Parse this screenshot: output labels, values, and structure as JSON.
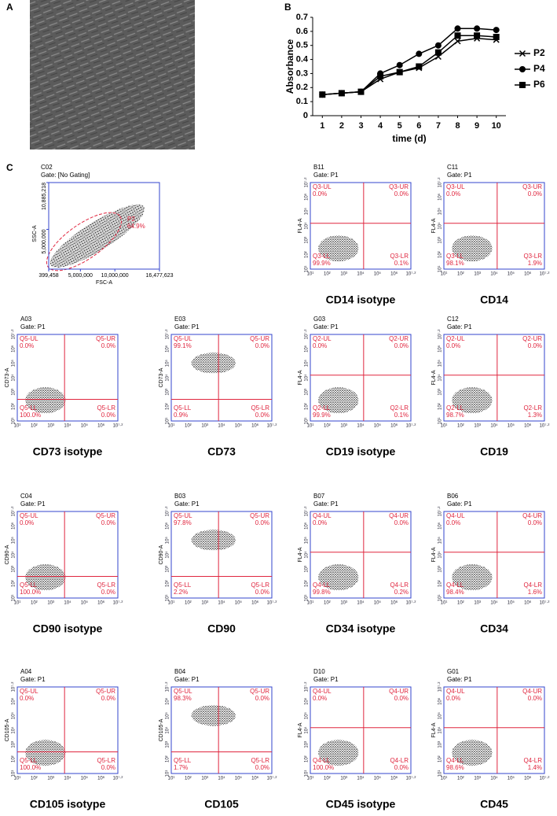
{
  "panel_labels": [
    "A",
    "B",
    "C"
  ],
  "chart_data": {
    "type": "line",
    "xlabel": "time (d)",
    "ylabel": "Absorbance",
    "x": [
      1,
      2,
      3,
      4,
      5,
      6,
      7,
      8,
      9,
      10
    ],
    "xlim": [
      0.5,
      10.5
    ],
    "xticks": [
      1,
      2,
      3,
      4,
      5,
      6,
      7,
      8,
      9,
      10
    ],
    "ylim": [
      0,
      0.7
    ],
    "yticks": [
      0,
      0.1,
      0.2,
      0.3,
      0.4,
      0.5,
      0.6,
      0.7
    ],
    "legend": "right",
    "series": [
      {
        "name": "P2",
        "color": "#000000",
        "marker": "x",
        "values": [
          0.15,
          0.16,
          0.17,
          0.26,
          0.31,
          0.34,
          0.42,
          0.53,
          0.55,
          0.54
        ]
      },
      {
        "name": "P4",
        "color": "#000000",
        "marker": "circle",
        "values": [
          0.15,
          0.16,
          0.17,
          0.3,
          0.36,
          0.44,
          0.5,
          0.62,
          0.62,
          0.61
        ]
      },
      {
        "name": "P6",
        "color": "#000000",
        "marker": "square",
        "values": [
          0.15,
          0.16,
          0.17,
          0.28,
          0.31,
          0.35,
          0.45,
          0.57,
          0.57,
          0.56
        ]
      }
    ]
  },
  "scatter_plot": {
    "id": "C02",
    "gate": "Gate: [No Gating]",
    "xlabel": "FSC-A",
    "ylabel": "SSC-A",
    "region": "P2",
    "region_value": "64.9%",
    "xlim": [
      399458,
      16477623
    ],
    "xticks": [
      {
        "value": 399458,
        "label": "399,458"
      },
      {
        "value": 5000000,
        "label": "5,000,000"
      },
      {
        "value": 10000000,
        "label": "10,000,000"
      },
      {
        "value": 16477623,
        "label": "16,477,623"
      }
    ],
    "ylim": [
      0,
      10885218
    ],
    "yticks": [
      {
        "value": 5000000,
        "label": "5,000,000"
      },
      {
        "value": 10885218,
        "label": "10,885,218"
      }
    ]
  },
  "log_tick_labels": [
    "10¹",
    "10²",
    "10³",
    "10⁴",
    "10⁵",
    "10⁶",
    "10⁷·²"
  ],
  "flow_plots": [
    {
      "id": "B11",
      "gate": "Gate: P1",
      "ylabel": "FL4-A",
      "caption": "CD14 isotype",
      "quadrants": [
        [
          "Q3-UL",
          "0.0%"
        ],
        [
          "Q3-UR",
          "0.0%"
        ],
        [
          "Q3-LL",
          "99.9%"
        ],
        [
          "Q3-LR",
          "0.1%"
        ]
      ]
    },
    {
      "id": "C11",
      "gate": "Gate: P1",
      "ylabel": "FL4-A",
      "caption": "CD14",
      "quadrants": [
        [
          "Q3-UL",
          "0.0%"
        ],
        [
          "Q3-UR",
          "0.0%"
        ],
        [
          "Q3-LL",
          "98.1%"
        ],
        [
          "Q3-LR",
          "1.9%"
        ]
      ]
    },
    {
      "id": "A03",
      "gate": "Gate: P1",
      "ylabel": "CD73-A",
      "caption": "CD73 isotype",
      "quadrants": [
        [
          "Q5-UL",
          "0.0%"
        ],
        [
          "Q5-UR",
          "0.0%"
        ],
        [
          "Q5-LL",
          "100.0%"
        ],
        [
          "Q5-LR",
          "0.0%"
        ]
      ]
    },
    {
      "id": "E03",
      "gate": "Gate: P1",
      "ylabel": "CD73-A",
      "caption": "CD73",
      "quadrants": [
        [
          "Q5-UL",
          "99.1%"
        ],
        [
          "Q5-UR",
          "0.0%"
        ],
        [
          "Q5-LL",
          "0.9%"
        ],
        [
          "Q5-LR",
          "0.0%"
        ]
      ]
    },
    {
      "id": "G03",
      "gate": "Gate: P1",
      "ylabel": "FL4-A",
      "caption": "CD19 isotype",
      "quadrants": [
        [
          "Q2-UL",
          "0.0%"
        ],
        [
          "Q2-UR",
          "0.0%"
        ],
        [
          "Q2-LL",
          "99.9%"
        ],
        [
          "Q2-LR",
          "0.1%"
        ]
      ]
    },
    {
      "id": "C12",
      "gate": "Gate: P1",
      "ylabel": "FL4-A",
      "caption": "CD19",
      "quadrants": [
        [
          "Q2-UL",
          "0.0%"
        ],
        [
          "Q2-UR",
          "0.0%"
        ],
        [
          "Q2-LL",
          "98.7%"
        ],
        [
          "Q2-LR",
          "1.3%"
        ]
      ]
    },
    {
      "id": "C04",
      "gate": "Gate: P1",
      "ylabel": "CD90-A",
      "caption": "CD90 isotype",
      "quadrants": [
        [
          "Q5-UL",
          "0.0%"
        ],
        [
          "Q5-UR",
          "0.0%"
        ],
        [
          "Q5-LL",
          "100.0%"
        ],
        [
          "Q5-LR",
          "0.0%"
        ]
      ]
    },
    {
      "id": "B03",
      "gate": "Gate: P1",
      "ylabel": "CD90-A",
      "caption": "CD90",
      "quadrants": [
        [
          "Q5-UL",
          "97.8%"
        ],
        [
          "Q5-UR",
          "0.0%"
        ],
        [
          "Q5-LL",
          "2.2%"
        ],
        [
          "Q5-LR",
          "0.0%"
        ]
      ]
    },
    {
      "id": "B07",
      "gate": "Gate: P1",
      "ylabel": "FL4-A",
      "caption": "CD34 isotype",
      "quadrants": [
        [
          "Q4-UL",
          "0.0%"
        ],
        [
          "Q4-UR",
          "0.0%"
        ],
        [
          "Q4-LL",
          "99.8%"
        ],
        [
          "Q4-LR",
          "0.2%"
        ]
      ]
    },
    {
      "id": "B06",
      "gate": "Gate: P1",
      "ylabel": "FL4-A",
      "caption": "CD34",
      "quadrants": [
        [
          "Q4-UL",
          "0.0%"
        ],
        [
          "Q4-UR",
          "0.0%"
        ],
        [
          "Q4-LL",
          "98.4%"
        ],
        [
          "Q4-LR",
          "1.6%"
        ]
      ]
    },
    {
      "id": "A04",
      "gate": "Gate: P1",
      "ylabel": "CD105-A",
      "caption": "CD105 isotype",
      "quadrants": [
        [
          "Q5-UL",
          "0.0%"
        ],
        [
          "Q5-UR",
          "0.0%"
        ],
        [
          "Q5-LL",
          "100.0%"
        ],
        [
          "Q5-LR",
          "0.0%"
        ]
      ]
    },
    {
      "id": "B04",
      "gate": "Gate: P1",
      "ylabel": "CD105-A",
      "caption": "CD105",
      "quadrants": [
        [
          "Q5-UL",
          "98.3%"
        ],
        [
          "Q5-UR",
          "0.0%"
        ],
        [
          "Q5-LL",
          "1.7%"
        ],
        [
          "Q5-LR",
          "0.0%"
        ]
      ]
    },
    {
      "id": "D10",
      "gate": "Gate: P1",
      "ylabel": "FL4-A",
      "caption": "CD45 isotype",
      "quadrants": [
        [
          "Q4-UL",
          "0.0%"
        ],
        [
          "Q4-UR",
          "0.0%"
        ],
        [
          "Q4-LL",
          "100.0%"
        ],
        [
          "Q4-LR",
          "0.0%"
        ]
      ]
    },
    {
      "id": "G01",
      "gate": "Gate: P1",
      "ylabel": "FL4-A",
      "caption": "CD45",
      "quadrants": [
        [
          "Q4-UL",
          "0.0%"
        ],
        [
          "Q4-UR",
          "0.0%"
        ],
        [
          "Q4-LL",
          "98.6%"
        ],
        [
          "Q4-LR",
          "1.4%"
        ]
      ]
    }
  ]
}
